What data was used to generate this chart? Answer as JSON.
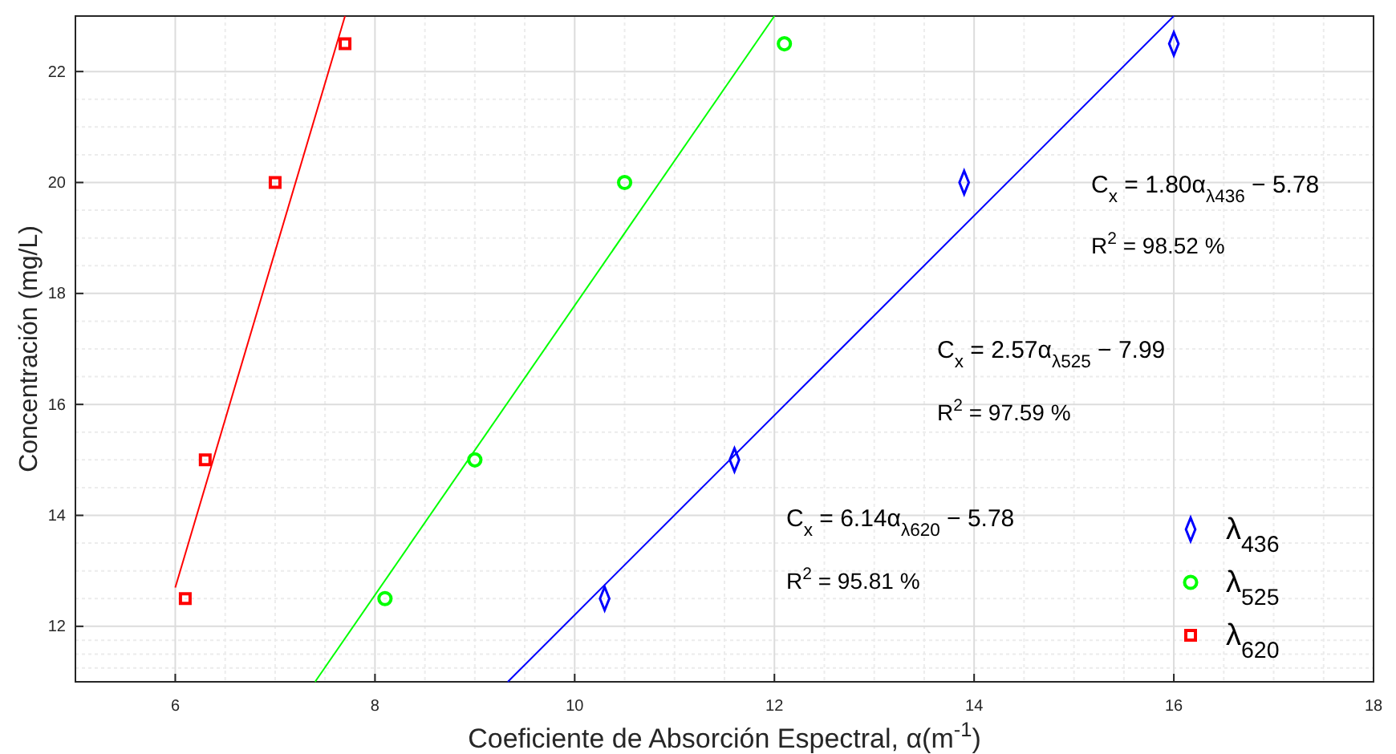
{
  "chart_data": {
    "type": "scatter",
    "xlabel": "Coeficiente de Absorción Espectral, α(m$^{-1}$)",
    "ylabel": "Concentración (mg/L)",
    "xlim": [
      5,
      18
    ],
    "xticks": [
      6,
      8,
      10,
      12,
      14,
      16,
      18
    ],
    "ylim": [
      11,
      23
    ],
    "yticks": [
      12,
      14,
      16,
      18,
      20,
      22
    ],
    "grid": true,
    "legend": "bottom right",
    "series": [
      {
        "name": "λ$_{436}$",
        "color": "#0000ff",
        "marker": "diamond",
        "x": [
          10.3,
          11.6,
          13.9,
          16
        ],
        "values": [
          12.5,
          15,
          20,
          22.5
        ]
      },
      {
        "name": "λ$_{525}$",
        "color": "#00ff00",
        "marker": "circle",
        "x": [
          8.1,
          9,
          10.5,
          12.1
        ],
        "values": [
          12.5,
          15,
          20,
          22.5
        ]
      },
      {
        "name": "λ$_{620}$",
        "color": "#ff0000",
        "marker": "square",
        "x": [
          6.1,
          6.3,
          7,
          7.7
        ],
        "values": [
          12.5,
          15,
          20,
          22.5
        ]
      },
      {
        "type": "line",
        "color": "#0000ff",
        "x": [
          9.33,
          16
        ],
        "values": [
          11,
          23
        ]
      },
      {
        "type": "line",
        "color": "#00ff00",
        "x": [
          7.4,
          12
        ],
        "values": [
          11,
          23
        ]
      },
      {
        "type": "line",
        "color": "#ff0000",
        "x": [
          6,
          7.7
        ],
        "values": [
          12.7,
          23
        ]
      }
    ],
    "annotations": [
      "C$_{x}$ = 1.80α$_{λ436}$ − 5.78",
      "R$^{2}$ = 98.52 %",
      "C$_{x}$ = 2.57α$_{λ525}$ − 7.99",
      "R$^{2}$ = 97.59 %",
      "C$_{x}$ = 6.14α$_{λ620}$ − 5.78",
      "R$^{2}$ = 95.81 %"
    ]
  }
}
